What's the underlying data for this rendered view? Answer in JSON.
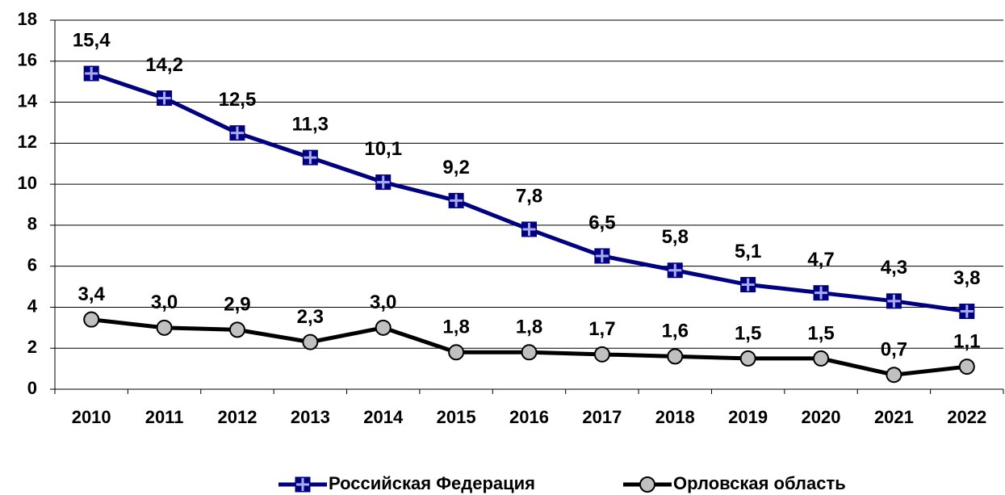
{
  "chart_data": {
    "type": "line",
    "categories": [
      "2010",
      "2011",
      "2012",
      "2013",
      "2014",
      "2015",
      "2016",
      "2017",
      "2018",
      "2019",
      "2020",
      "2021",
      "2022"
    ],
    "series": [
      {
        "name": "Российская Федерация",
        "color": "#000080",
        "values": [
          15.4,
          14.2,
          12.5,
          11.3,
          10.1,
          9.2,
          7.8,
          6.5,
          5.8,
          5.1,
          4.7,
          4.3,
          3.8
        ],
        "value_labels": [
          "15,4",
          "14,2",
          "12,5",
          "11,3",
          "10,1",
          "9,2",
          "7,8",
          "6,5",
          "5,8",
          "5,1",
          "4,7",
          "4,3",
          "3,8"
        ]
      },
      {
        "name": "Орловская область",
        "color": "#000000",
        "values": [
          3.4,
          3.0,
          2.9,
          2.3,
          3.0,
          1.8,
          1.8,
          1.7,
          1.6,
          1.5,
          1.5,
          0.7,
          1.1
        ],
        "value_labels": [
          "3,4",
          "3,0",
          "2,9",
          "2,3",
          "3,0",
          "1,8",
          "1,8",
          "1,7",
          "1,6",
          "1,5",
          "1,5",
          "0,7",
          "1,1"
        ]
      }
    ],
    "ylim": [
      0,
      18
    ],
    "yticks": [
      0,
      2,
      4,
      6,
      8,
      10,
      12,
      14,
      16,
      18
    ],
    "grid": true,
    "legend": "bottom"
  }
}
